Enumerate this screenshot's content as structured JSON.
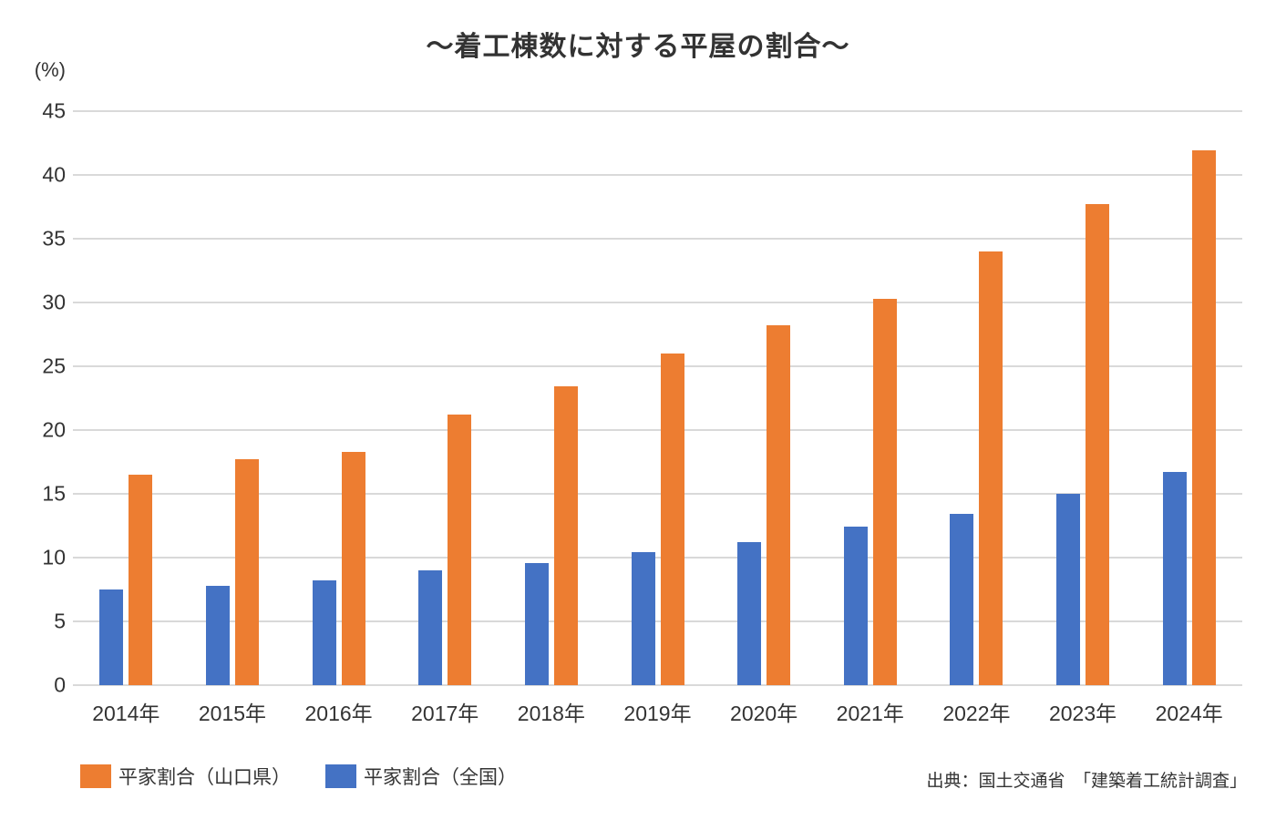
{
  "title": "～着工棟数に対する平屋の割合～",
  "y_axis": {
    "unit_label": "(%)"
  },
  "source": "出典：国土交通省　「建築着工統計調査」",
  "colors": {
    "yamaguchi_orange": "#ED7D31",
    "national_blue": "#4472C4",
    "gridline": "#D9D9D9",
    "text": "#333333",
    "background": "#FFFFFF"
  },
  "legend": {
    "items": [
      {
        "label": "平家割合（山口県）",
        "color": "#ED7D31",
        "series_key": "yamaguchi"
      },
      {
        "label": "平家割合（全国）",
        "color": "#4472C4",
        "series_key": "national"
      }
    ]
  },
  "chart_data": {
    "type": "bar",
    "title": "～着工棟数に対する平屋の割合～",
    "categories": [
      "2014年",
      "2015年",
      "2016年",
      "2017年",
      "2018年",
      "2019年",
      "2020年",
      "2021年",
      "2022年",
      "2023年",
      "2024年"
    ],
    "series": [
      {
        "name": "平家割合（全国）",
        "key": "national",
        "color": "#4472C4",
        "values": [
          7.5,
          7.8,
          8.2,
          9.0,
          9.6,
          10.4,
          11.2,
          12.4,
          13.4,
          15.0,
          16.7
        ]
      },
      {
        "name": "平家割合（山口県）",
        "key": "yamaguchi",
        "color": "#ED7D31",
        "values": [
          16.5,
          17.7,
          18.3,
          21.2,
          23.4,
          26.0,
          28.2,
          30.3,
          34.0,
          37.7,
          41.9
        ]
      }
    ],
    "xlabel": "",
    "ylabel": "(%)",
    "ylim": [
      0,
      45
    ],
    "y_ticks": [
      0,
      5,
      10,
      15,
      20,
      25,
      30,
      35,
      40,
      45
    ],
    "grid": true,
    "legend_position": "bottom-left",
    "bar_pair_order": [
      "national",
      "yamaguchi"
    ]
  }
}
